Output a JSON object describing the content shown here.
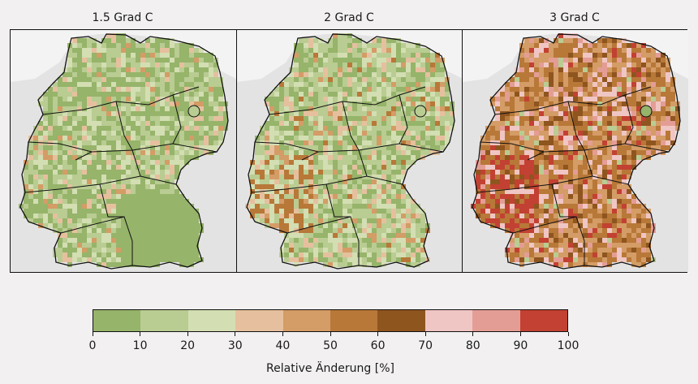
{
  "panels": [
    {
      "title": "1.5 Grad C",
      "palette": [
        "#96b46a",
        "#b9cc92",
        "#d3deb2",
        "#e6c09e",
        "#d49c66"
      ],
      "weights": [
        0.4,
        0.3,
        0.18,
        0.08,
        0.04
      ]
    },
    {
      "title": "2 Grad C",
      "palette": [
        "#96b46a",
        "#b9cc92",
        "#d3deb2",
        "#e6c09e",
        "#d49c66",
        "#b87838"
      ],
      "weights": [
        0.28,
        0.32,
        0.2,
        0.1,
        0.07,
        0.03
      ]
    },
    {
      "title": "3 Grad C",
      "palette": [
        "#b9cc92",
        "#d49c66",
        "#b87838",
        "#8f551f",
        "#f0c6c4",
        "#e49d95",
        "#c24132"
      ],
      "weights": [
        0.04,
        0.3,
        0.3,
        0.1,
        0.12,
        0.08,
        0.06
      ]
    }
  ],
  "colorbar": {
    "colors": [
      "#96b46a",
      "#b9cc92",
      "#d3deb2",
      "#e6c09e",
      "#d49c66",
      "#b87838",
      "#8f551f",
      "#f0c6c4",
      "#e49d95",
      "#c24132"
    ],
    "ticks": [
      "0",
      "10",
      "20",
      "30",
      "40",
      "50",
      "60",
      "70",
      "80",
      "90",
      "100"
    ],
    "label": "Relative Änderung [%]"
  },
  "colors": {
    "background": "#f2f0f1",
    "map_background": "#e4e3e4",
    "outside_land": "#f4f3f4",
    "border": "#111111"
  }
}
